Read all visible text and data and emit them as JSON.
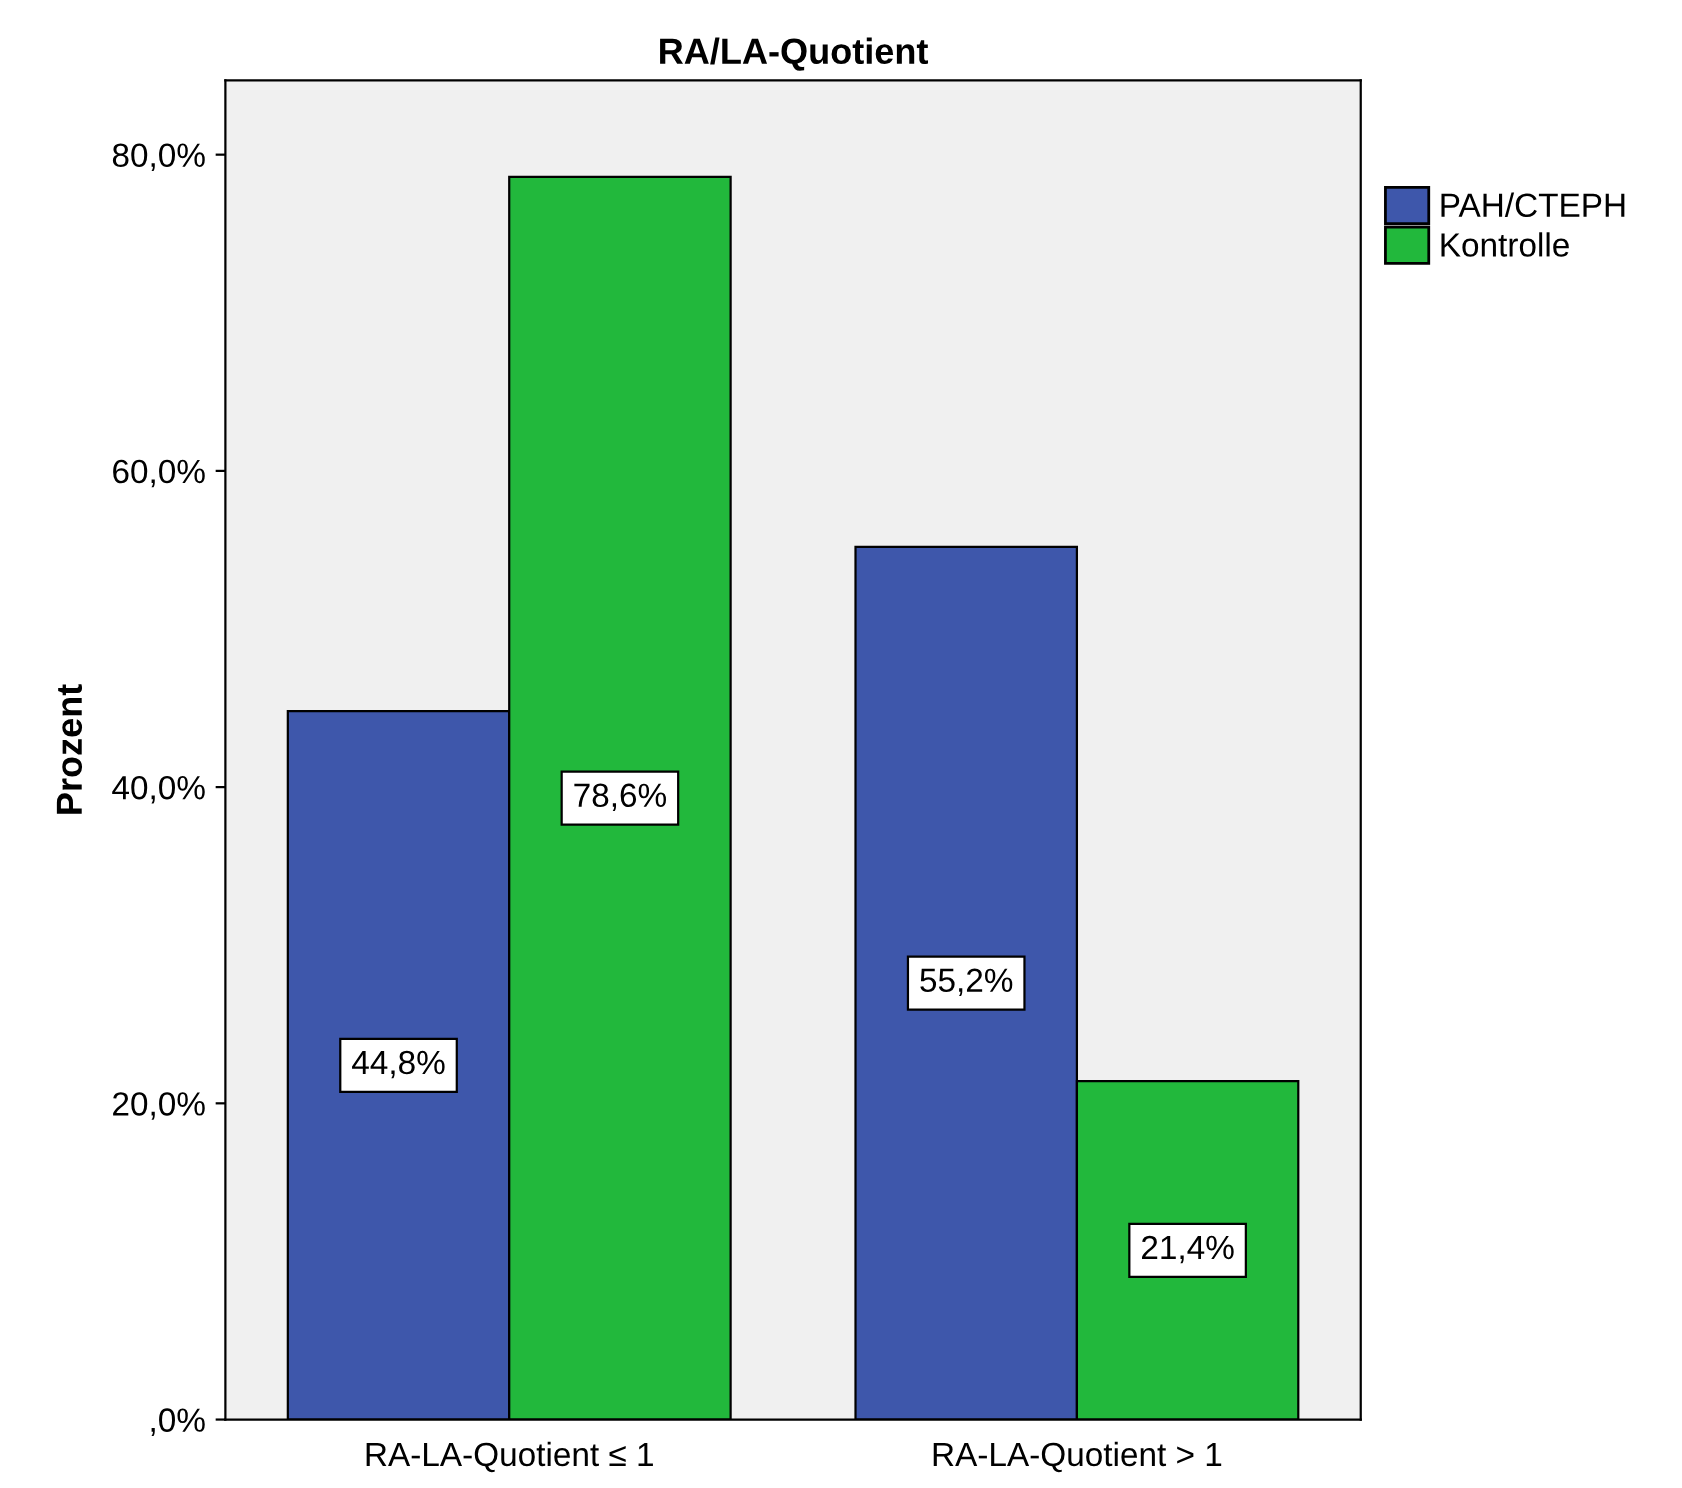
{
  "chart_data": {
    "type": "bar",
    "title": "RA/LA-Quotient",
    "ylabel": "Prozent",
    "categories": [
      "RA-LA-Quotient ≤ 1",
      "RA-LA-Quotient > 1"
    ],
    "series": [
      {
        "name": "PAH/CTEPH",
        "color": "#3e57ab",
        "values": [
          44.8,
          55.2
        ],
        "value_labels": [
          "44,8%",
          "55,2%"
        ]
      },
      {
        "name": "Kontrolle",
        "color": "#22b83c",
        "values": [
          78.6,
          21.4
        ],
        "value_labels": [
          "78,6%",
          "21,4%"
        ]
      }
    ],
    "ylim": [
      0,
      84.7
    ],
    "yticks": [
      {
        "value": 0,
        "label": ",0%"
      },
      {
        "value": 20,
        "label": "20,0%"
      },
      {
        "value": 40,
        "label": "40,0%"
      },
      {
        "value": 60,
        "label": "60,0%"
      },
      {
        "value": 80,
        "label": "80,0%"
      }
    ],
    "legend": "top right",
    "grid": false
  }
}
